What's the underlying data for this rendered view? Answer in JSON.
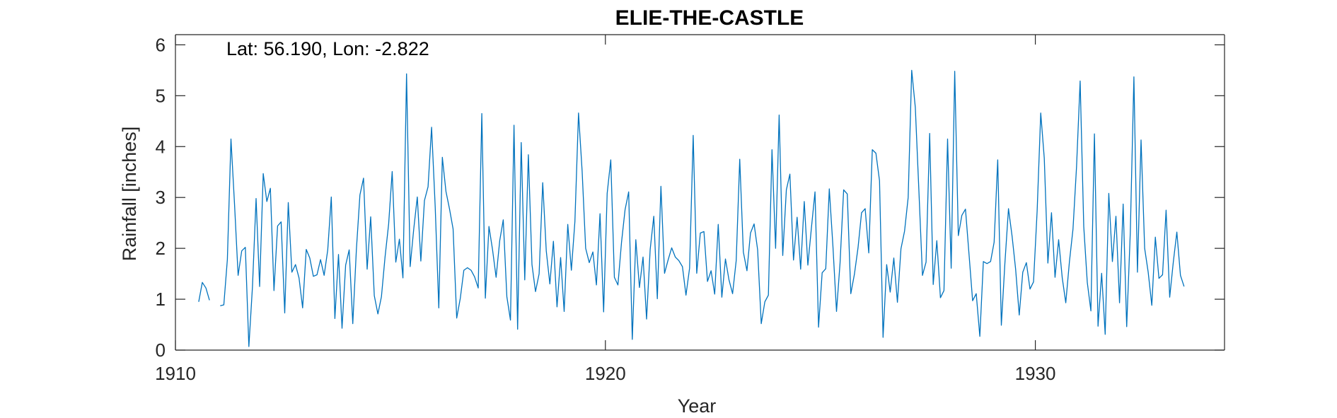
{
  "chart_data": {
    "type": "line",
    "title": "ELIE-THE-CASTLE",
    "annotation": "Lat: 56.190, Lon: -2.822",
    "xlabel": "Year",
    "ylabel": "Rainfall [inches]",
    "xlim": [
      1910,
      1934.4
    ],
    "ylim": [
      0,
      6.2
    ],
    "xticks": [
      1910,
      1920,
      1930
    ],
    "yticks": [
      0,
      1,
      2,
      3,
      4,
      5,
      6
    ],
    "grid": false,
    "color": "#0072BD",
    "segments": [
      {
        "start": 1910.5417,
        "values": [
          0.95,
          1.33,
          1.22,
          0.98
        ]
      },
      {
        "start": 1911.0417,
        "values": [
          0.87,
          0.89,
          1.78,
          4.15,
          2.85,
          1.47,
          1.95,
          2.02,
          0.07,
          1.25,
          2.98,
          1.25,
          3.47,
          2.92,
          3.18,
          1.17,
          2.44,
          2.52,
          0.73,
          2.9,
          1.53,
          1.68,
          1.42,
          0.83,
          1.98,
          1.81,
          1.45,
          1.48,
          1.78,
          1.47,
          1.97,
          3.01,
          0.62,
          1.88,
          0.43,
          1.67,
          1.97,
          0.52,
          1.98,
          3.05,
          3.38,
          1.59,
          2.62,
          1.07,
          0.71,
          1.05,
          1.83,
          2.48,
          3.51,
          1.73,
          2.18,
          1.42,
          5.43,
          1.64,
          2.37,
          3.01,
          1.75,
          2.94,
          3.21,
          4.38,
          2.82,
          0.83,
          3.79,
          3.12,
          2.77,
          2.38,
          0.63,
          1.02,
          1.57,
          1.62,
          1.57,
          1.44,
          1.22,
          4.65,
          1.02,
          2.43,
          1.98,
          1.43,
          2.15,
          2.56,
          1.05,
          0.59,
          4.42,
          0.41,
          4.08,
          1.38,
          3.84,
          1.68,
          1.15,
          1.5,
          3.29,
          1.95,
          1.3,
          2.14,
          0.85,
          1.82,
          0.76,
          2.47,
          1.57,
          2.53,
          4.66,
          3.52,
          2.0,
          1.72,
          1.93,
          1.28,
          2.68,
          0.75,
          3.08,
          3.74,
          1.43,
          1.28,
          2.12,
          2.76,
          3.11,
          0.21,
          2.17,
          1.23,
          1.83,
          0.61,
          1.98,
          2.63,
          1.01,
          3.22,
          1.51,
          1.77,
          2.01,
          1.83,
          1.76,
          1.64,
          1.08,
          1.61,
          4.22,
          1.51,
          2.3,
          2.33,
          1.35,
          1.56,
          1.1,
          2.47,
          1.04,
          1.79,
          1.38,
          1.11,
          1.76,
          3.75,
          1.93,
          1.56,
          2.3,
          2.48,
          1.97,
          0.52,
          0.95,
          1.08,
          3.94,
          2.0,
          4.62,
          1.86,
          3.15,
          3.46,
          1.77,
          2.61,
          1.59,
          2.92,
          1.67,
          2.4,
          3.11,
          0.45,
          1.52,
          1.6,
          3.17,
          2.05,
          0.76,
          1.71,
          3.15,
          3.07,
          1.11,
          1.49,
          2.01,
          2.7,
          2.78,
          1.91,
          3.94,
          3.87,
          3.33,
          0.25,
          1.68,
          1.14,
          1.81,
          0.94,
          1.99,
          2.34,
          3.0,
          5.5,
          4.77,
          3.12,
          1.47,
          1.73,
          4.26,
          1.29,
          2.15,
          1.03,
          1.17,
          4.15,
          1.61,
          5.48,
          2.25,
          2.65,
          2.77,
          1.87,
          0.97,
          1.11,
          0.27,
          1.74,
          1.7,
          1.74,
          2.12,
          3.74,
          0.49,
          1.7,
          2.78,
          2.24,
          1.59,
          0.69,
          1.53,
          1.72,
          1.2,
          1.34,
          2.73,
          4.66,
          3.77,
          1.71,
          2.7,
          1.43,
          2.17,
          1.42,
          0.93,
          1.73,
          2.38,
          3.6,
          5.29,
          2.43,
          1.33,
          0.77,
          4.25,
          0.47,
          1.51,
          0.31,
          3.08,
          1.74,
          2.63,
          0.93,
          2.87,
          0.46,
          2.31,
          5.37,
          1.53,
          4.13,
          2.0,
          1.53,
          0.88,
          2.22,
          1.41,
          1.48,
          2.75,
          1.04,
          1.73,
          2.32,
          1.47,
          1.25
        ]
      }
    ]
  }
}
